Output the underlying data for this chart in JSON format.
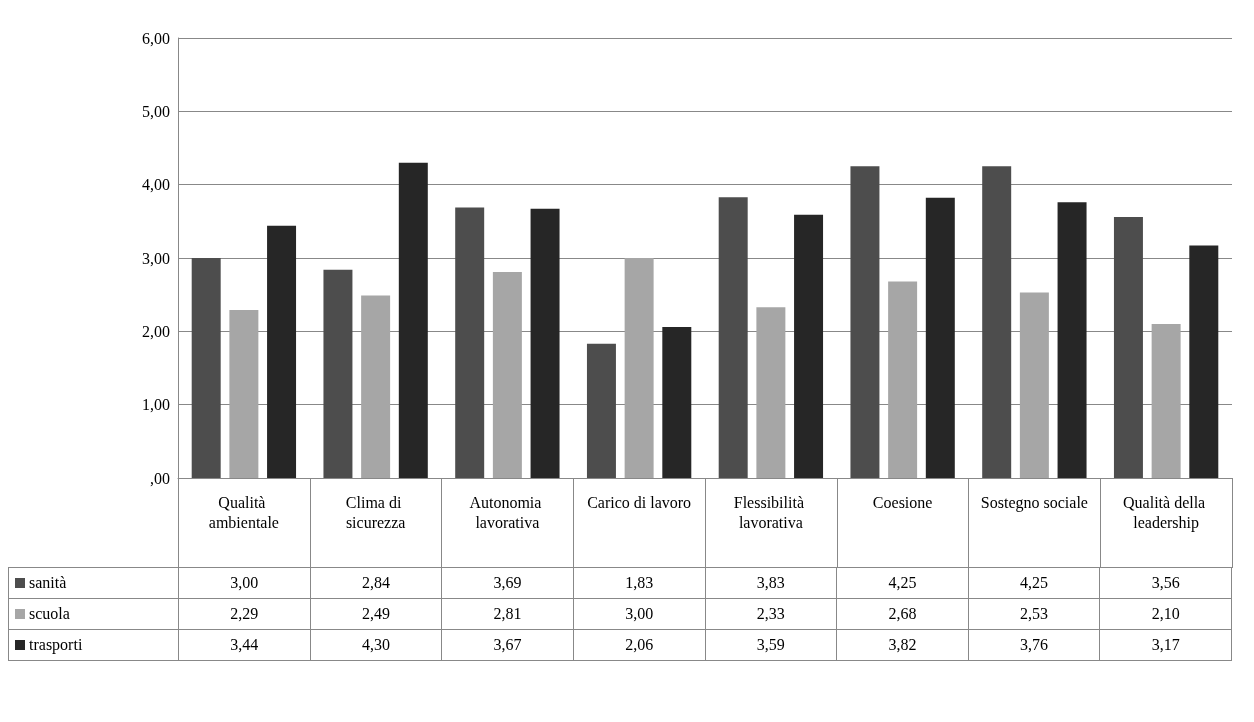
{
  "chart_data": {
    "type": "bar",
    "categories": [
      "Qualità ambientale",
      "Clima di sicurezza",
      "Autonomia lavorativa",
      "Carico di lavoro",
      "Flessibilità lavorativa",
      "Coesione",
      "Sostegno sociale",
      "Qualità della leadership"
    ],
    "series": [
      {
        "name": "sanità",
        "color": "#4d4d4d",
        "values": [
          3.0,
          2.84,
          3.69,
          1.83,
          3.83,
          4.25,
          4.25,
          3.56
        ],
        "value_labels": [
          "3,00",
          "2,84",
          "3,69",
          "1,83",
          "3,83",
          "4,25",
          "4,25",
          "3,56"
        ]
      },
      {
        "name": "scuola",
        "color": "#a6a6a6",
        "values": [
          2.29,
          2.49,
          2.81,
          3.0,
          2.33,
          2.68,
          2.53,
          2.1
        ],
        "value_labels": [
          "2,29",
          "2,49",
          "2,81",
          "3,00",
          "2,33",
          "2,68",
          "2,53",
          "2,10"
        ]
      },
      {
        "name": "trasporti",
        "color": "#262626",
        "values": [
          3.44,
          4.3,
          3.67,
          2.06,
          3.59,
          3.82,
          3.76,
          3.17
        ],
        "value_labels": [
          "3,44",
          "4,30",
          "3,67",
          "2,06",
          "3,59",
          "3,82",
          "3,76",
          "3,17"
        ]
      }
    ],
    "ylim": [
      0,
      6
    ],
    "yticks": [
      {
        "value": 0,
        "label": ",00"
      },
      {
        "value": 1,
        "label": "1,00"
      },
      {
        "value": 2,
        "label": "2,00"
      },
      {
        "value": 3,
        "label": "3,00"
      },
      {
        "value": 4,
        "label": "4,00"
      },
      {
        "value": 5,
        "label": "5,00"
      },
      {
        "value": 6,
        "label": "6,00"
      }
    ],
    "grid": "y",
    "legend": "bottom"
  }
}
